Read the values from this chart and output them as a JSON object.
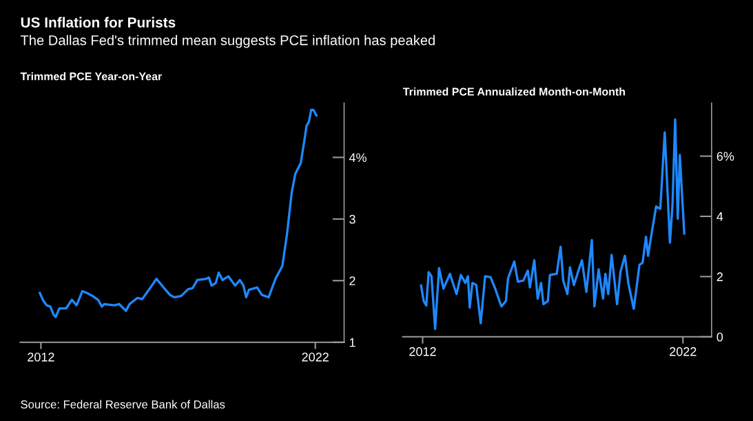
{
  "chart_data": [
    {
      "type": "line",
      "title": "Trimmed PCE Year-on-Year",
      "xlim": [
        2011.25,
        2023.05
      ],
      "xticks": [
        2012,
        2022
      ],
      "ylim": [
        1,
        4.88
      ],
      "yticks": [
        1,
        2,
        3,
        {
          "value": 4,
          "label": "4%"
        }
      ],
      "annotations": [
        "US Inflation for Purists",
        "The Dallas Fed's trimmed mean suggests PCE inflation has peaked",
        "Source: Federal Reserve Bank of Dallas"
      ],
      "series": [
        {
          "color": "#1e88ff",
          "x": [
            2011.96,
            2012.08,
            2012.21,
            2012.34,
            2012.46,
            2012.54,
            2012.67,
            2012.92,
            2013.13,
            2013.3,
            2013.51,
            2013.68,
            2013.89,
            2014.1,
            2014.22,
            2014.31,
            2014.68,
            2014.85,
            2015.1,
            2015.23,
            2015.52,
            2015.69,
            2015.95,
            2016.21,
            2016.45,
            2016.7,
            2016.86,
            2017.11,
            2017.36,
            2017.53,
            2017.7,
            2018.03,
            2018.12,
            2018.22,
            2018.37,
            2018.48,
            2018.62,
            2018.83,
            2019.08,
            2019.25,
            2019.38,
            2019.48,
            2019.58,
            2019.88,
            2020.05,
            2020.3,
            2020.55,
            2020.8,
            2020.97,
            2021.14,
            2021.27,
            2021.47,
            2021.6,
            2021.68,
            2021.77,
            2021.85,
            2021.93,
            2022.04
          ],
          "values": [
            1.8,
            1.68,
            1.6,
            1.58,
            1.45,
            1.41,
            1.55,
            1.55,
            1.69,
            1.6,
            1.83,
            1.8,
            1.75,
            1.68,
            1.58,
            1.62,
            1.6,
            1.62,
            1.51,
            1.62,
            1.72,
            1.7,
            1.86,
            2.03,
            1.9,
            1.77,
            1.73,
            1.75,
            1.86,
            1.88,
            2.01,
            2.03,
            2.05,
            1.92,
            1.96,
            2.13,
            2.01,
            2.07,
            1.92,
            2.01,
            1.92,
            1.73,
            1.85,
            1.89,
            1.77,
            1.73,
            2.03,
            2.24,
            2.76,
            3.43,
            3.73,
            3.91,
            4.27,
            4.51,
            4.58,
            4.77,
            4.77,
            4.68
          ]
        }
      ]
    },
    {
      "type": "line",
      "title": "Trimmed PCE Annualized Month-on-Month",
      "xlim": [
        2011.24,
        2023.1
      ],
      "xticks": [
        2012,
        2022
      ],
      "ylim": [
        0,
        7.76
      ],
      "yticks": [
        0,
        2,
        4,
        {
          "value": 6,
          "label": "6%"
        }
      ],
      "series": [
        {
          "color": "#1e88ff",
          "x": [
            2011.94,
            2012.04,
            2012.14,
            2012.23,
            2012.34,
            2012.48,
            2012.63,
            2012.8,
            2013.05,
            2013.3,
            2013.47,
            2013.64,
            2013.74,
            2013.81,
            2013.91,
            2014.06,
            2014.23,
            2014.4,
            2014.61,
            2014.8,
            2014.95,
            2015.03,
            2015.2,
            2015.28,
            2015.52,
            2015.66,
            2015.87,
            2016.04,
            2016.12,
            2016.29,
            2016.42,
            2016.55,
            2016.64,
            2016.81,
            2016.89,
            2017.15,
            2017.3,
            2017.4,
            2017.56,
            2017.66,
            2017.81,
            2017.97,
            2018.12,
            2018.29,
            2018.5,
            2018.6,
            2018.76,
            2018.93,
            2019.02,
            2019.13,
            2019.26,
            2019.47,
            2019.6,
            2019.77,
            2019.9,
            2020.11,
            2020.33,
            2020.45,
            2020.58,
            2020.66,
            2020.79,
            2020.97,
            2021.13,
            2021.3,
            2021.5,
            2021.6,
            2021.7,
            2021.8,
            2021.88,
            2022.05
          ],
          "values": [
            1.7,
            1.19,
            1.04,
            2.15,
            2.01,
            0.26,
            2.28,
            1.6,
            2.09,
            1.42,
            2.05,
            1.79,
            2.01,
            0.97,
            1.79,
            1.72,
            0.45,
            2.01,
            1.98,
            1.57,
            1.19,
            1.01,
            1.19,
            1.94,
            2.5,
            1.83,
            1.87,
            2.2,
            1.64,
            2.54,
            1.27,
            1.79,
            1.08,
            1.19,
            2.05,
            2.09,
            2.99,
            1.87,
            1.42,
            2.31,
            1.72,
            2.16,
            2.54,
            1.49,
            3.21,
            1.01,
            2.24,
            1.27,
            2.09,
            1.42,
            2.72,
            1.08,
            2.16,
            2.69,
            1.79,
            0.93,
            2.39,
            2.46,
            3.32,
            2.69,
            3.4,
            4.33,
            4.25,
            6.79,
            3.13,
            4.4,
            7.22,
            3.92,
            6.04,
            3.43
          ]
        }
      ]
    }
  ]
}
